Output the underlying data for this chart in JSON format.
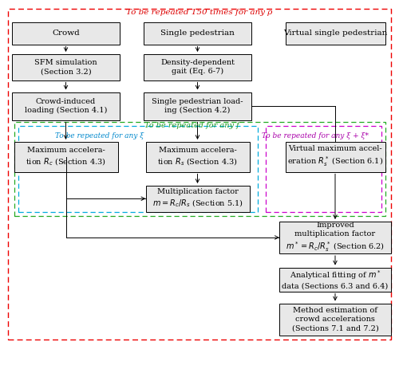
{
  "title_top": "To be repeated 150 times for any ρ",
  "label_repeat_f": "To be repeated for any f",
  "label_repeat_xi": "To be repeated for any ξ",
  "label_repeat_xi_star": "To be repeated for any ξ + ξ*",
  "boxes": {
    "crowd": "Crowd",
    "single_ped": "Single pedestrian",
    "virtual_ped": "Virtual single pedestrian",
    "sfm": "SFM simulation\n(Section 3.2)",
    "density_gait": "Density-dependent\ngait (Eq. 6-7)",
    "crowd_load": "Crowd-induced\nloading (Section 4.1)",
    "single_load": "Single pedestrian load-\ning (Section 4.2)",
    "max_acc_rc": "Maximum accelera-\ntion $R_c$ (Section 4.3)",
    "max_acc_rs": "Maximum accelera-\ntion $R_s$ (Section 4.3)",
    "mult_factor": "Multiplication factor\n$m = R_c/R_s$ (Section 5.1)",
    "virtual_max": "Virtual maximum accel-\neration $R_s^*$ (Section 6.1)",
    "improved_mult": "Improved\nmultiplication factor\n$m^* = R_c/R_s^*$ (Section 6.2)",
    "analytical": "Analytical fitting of $m^*$\ndata (Sections 6.3 and 6.4)",
    "method_est": "Method estimation of\ncrowd accelerations\n(Sections 7.1 and 7.2)"
  },
  "colors": {
    "box_face": "#e8e8e8",
    "box_edge": "#000000",
    "border_red": "#ee0000",
    "border_green": "#22aa22",
    "border_cyan": "#00aadd",
    "border_magenta": "#cc00cc",
    "title_red": "#dd0000",
    "label_green": "#229922",
    "label_cyan": "#0088cc",
    "label_magenta": "#aa00aa",
    "background": "#ffffff"
  }
}
